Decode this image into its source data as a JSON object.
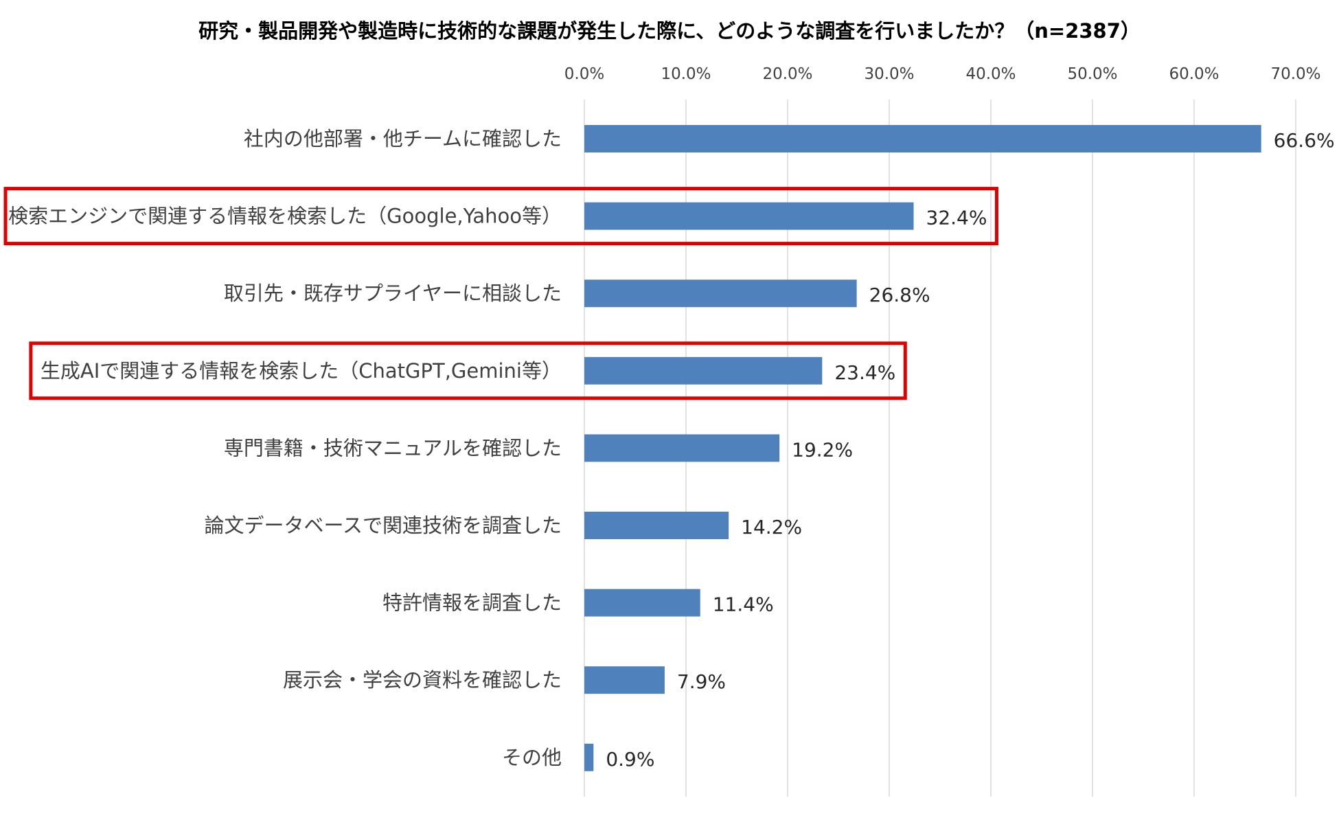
{
  "chart_data": {
    "type": "bar",
    "orientation": "horizontal",
    "title": "研究・製品開発や製造時に技術的な課題が発生した際に、どのような調査を行いましたか？（n=2387）",
    "categories": [
      "社内の他部署・他チームに確認した",
      "検索エンジンで関連する情報を検索した（Google,Yahoo等）",
      "取引先・既存サプライヤーに相談した",
      "生成AIで関連する情報を検索した（ChatGPT,Gemini等）",
      "専門書籍・技術マニュアルを確認した",
      "論文データベースで関連技術を調査した",
      "特許情報を調査した",
      "展示会・学会の資料を確認した",
      "その他"
    ],
    "values": [
      66.6,
      32.4,
      26.8,
      23.4,
      19.2,
      14.2,
      11.4,
      7.9,
      0.9
    ],
    "value_labels": [
      "66.6%",
      "32.4%",
      "26.8%",
      "23.4%",
      "19.2%",
      "14.2%",
      "11.4%",
      "7.9%",
      "0.9%"
    ],
    "x_ticks": [
      0,
      10,
      20,
      30,
      40,
      50,
      60,
      70
    ],
    "x_tick_labels": [
      "0.0%",
      "10.0%",
      "20.0%",
      "30.0%",
      "40.0%",
      "50.0%",
      "60.0%",
      "70.0%"
    ],
    "xlim": [
      0,
      70
    ],
    "x_axis_position": "top",
    "grid": true,
    "highlighted_categories": [
      "検索エンジンで関連する情報を検索した（Google,Yahoo等）",
      "生成AIで関連する情報を検索した（ChatGPT,Gemini等）"
    ],
    "colors": {
      "bar": "#4f81bd",
      "highlight_box": "#e00000",
      "grid": "#d9d9d9"
    }
  }
}
